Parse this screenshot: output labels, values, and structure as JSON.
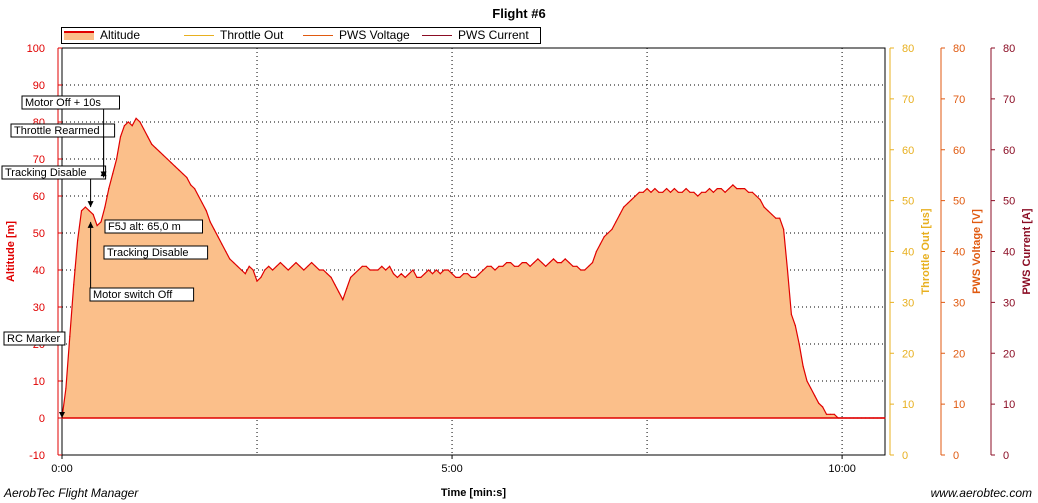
{
  "footer": {
    "left": "AerobTec Flight Manager",
    "right": "www.aerobtec.com"
  },
  "colors": {
    "altitude_line": "#e00000",
    "altitude_fill": "#fbbf8a",
    "throttle": "#e8b020",
    "voltage": "#e05a10",
    "current": "#8b0d24",
    "grid": "#000000"
  },
  "chart_data": {
    "type": "area",
    "title": "Flight #6",
    "xlabel": "Time [min:s]",
    "x_unit": "seconds",
    "xlim": [
      0,
      633
    ],
    "x_ticks": [
      {
        "v": 0,
        "label": "0:00"
      },
      {
        "v": 300,
        "label": "5:00"
      },
      {
        "v": 600,
        "label": "10:00"
      }
    ],
    "grid": true,
    "legend_position": "top-left",
    "legend": [
      "Altitude",
      "Throttle Out",
      "PWS Voltage",
      "PWS Current"
    ],
    "axes": [
      {
        "id": "altitude",
        "label": "Altitude [m]",
        "color": "#e00000",
        "side": "left",
        "range": [
          -10,
          100
        ],
        "ticks": [
          -10,
          0,
          10,
          20,
          30,
          40,
          50,
          60,
          70,
          80,
          90,
          100
        ]
      },
      {
        "id": "throttle",
        "label": "Throttle Out [us]",
        "color": "#e8b020",
        "side": "right",
        "range": [
          0,
          80
        ],
        "ticks": [
          0,
          10,
          20,
          30,
          40,
          50,
          60,
          70,
          80
        ]
      },
      {
        "id": "voltage",
        "label": "PWS Voltage [V]",
        "color": "#e05a10",
        "side": "right",
        "range": [
          0,
          80
        ],
        "ticks": [
          0,
          10,
          20,
          30,
          40,
          50,
          60,
          70,
          80
        ]
      },
      {
        "id": "current",
        "label": "PWS Current [A]",
        "color": "#8b0d24",
        "side": "right",
        "range": [
          0,
          80
        ],
        "ticks": [
          0,
          10,
          20,
          30,
          40,
          50,
          60,
          70,
          80
        ]
      }
    ],
    "series": [
      {
        "name": "Altitude",
        "axis": "altitude",
        "points": [
          [
            0,
            0
          ],
          [
            3,
            8
          ],
          [
            6,
            22
          ],
          [
            9,
            36
          ],
          [
            12,
            48
          ],
          [
            15,
            56
          ],
          [
            18,
            57
          ],
          [
            21,
            56
          ],
          [
            24,
            55
          ],
          [
            27,
            52
          ],
          [
            30,
            53
          ],
          [
            33,
            57
          ],
          [
            36,
            62
          ],
          [
            39,
            66
          ],
          [
            42,
            70
          ],
          [
            45,
            76
          ],
          [
            48,
            79
          ],
          [
            51,
            80
          ],
          [
            54,
            79
          ],
          [
            57,
            81
          ],
          [
            60,
            80
          ],
          [
            63,
            78
          ],
          [
            66,
            76
          ],
          [
            69,
            74
          ],
          [
            72,
            73
          ],
          [
            75,
            72
          ],
          [
            78,
            71
          ],
          [
            81,
            70
          ],
          [
            84,
            69
          ],
          [
            87,
            68
          ],
          [
            90,
            67
          ],
          [
            93,
            66
          ],
          [
            96,
            65
          ],
          [
            99,
            63
          ],
          [
            102,
            62
          ],
          [
            105,
            60
          ],
          [
            108,
            58
          ],
          [
            111,
            56
          ],
          [
            114,
            53
          ],
          [
            117,
            51
          ],
          [
            120,
            49
          ],
          [
            123,
            47
          ],
          [
            126,
            45
          ],
          [
            129,
            43
          ],
          [
            132,
            42
          ],
          [
            135,
            41
          ],
          [
            138,
            40
          ],
          [
            141,
            39
          ],
          [
            144,
            41
          ],
          [
            147,
            40
          ],
          [
            150,
            37
          ],
          [
            153,
            38
          ],
          [
            156,
            40
          ],
          [
            159,
            41
          ],
          [
            162,
            40
          ],
          [
            165,
            41
          ],
          [
            168,
            42
          ],
          [
            171,
            41
          ],
          [
            174,
            40
          ],
          [
            177,
            41
          ],
          [
            180,
            42
          ],
          [
            183,
            41
          ],
          [
            186,
            40
          ],
          [
            189,
            41
          ],
          [
            192,
            42
          ],
          [
            195,
            41
          ],
          [
            198,
            40
          ],
          [
            201,
            40
          ],
          [
            204,
            39
          ],
          [
            207,
            38
          ],
          [
            210,
            36
          ],
          [
            213,
            34
          ],
          [
            216,
            32
          ],
          [
            219,
            35
          ],
          [
            222,
            38
          ],
          [
            225,
            39
          ],
          [
            228,
            40
          ],
          [
            231,
            41
          ],
          [
            234,
            41
          ],
          [
            237,
            40
          ],
          [
            240,
            40
          ],
          [
            243,
            40
          ],
          [
            246,
            41
          ],
          [
            249,
            40
          ],
          [
            252,
            41
          ],
          [
            255,
            39
          ],
          [
            258,
            38
          ],
          [
            261,
            39
          ],
          [
            264,
            38
          ],
          [
            267,
            39
          ],
          [
            270,
            40
          ],
          [
            273,
            38
          ],
          [
            276,
            38
          ],
          [
            279,
            39
          ],
          [
            282,
            40
          ],
          [
            285,
            39
          ],
          [
            288,
            40
          ],
          [
            291,
            39
          ],
          [
            294,
            40
          ],
          [
            297,
            40
          ],
          [
            300,
            39
          ],
          [
            303,
            38
          ],
          [
            306,
            38
          ],
          [
            309,
            39
          ],
          [
            312,
            39
          ],
          [
            315,
            38
          ],
          [
            318,
            38
          ],
          [
            321,
            39
          ],
          [
            324,
            40
          ],
          [
            327,
            41
          ],
          [
            330,
            41
          ],
          [
            333,
            40
          ],
          [
            336,
            41
          ],
          [
            339,
            41
          ],
          [
            342,
            42
          ],
          [
            345,
            42
          ],
          [
            348,
            41
          ],
          [
            351,
            41
          ],
          [
            354,
            42
          ],
          [
            357,
            42
          ],
          [
            360,
            41
          ],
          [
            363,
            42
          ],
          [
            366,
            43
          ],
          [
            369,
            42
          ],
          [
            372,
            41
          ],
          [
            375,
            42
          ],
          [
            378,
            43
          ],
          [
            381,
            42
          ],
          [
            384,
            42
          ],
          [
            387,
            43
          ],
          [
            390,
            42
          ],
          [
            393,
            41
          ],
          [
            396,
            41
          ],
          [
            399,
            40
          ],
          [
            402,
            40
          ],
          [
            405,
            41
          ],
          [
            408,
            42
          ],
          [
            411,
            45
          ],
          [
            414,
            47
          ],
          [
            417,
            49
          ],
          [
            420,
            50
          ],
          [
            423,
            51
          ],
          [
            426,
            53
          ],
          [
            429,
            55
          ],
          [
            432,
            57
          ],
          [
            435,
            58
          ],
          [
            438,
            59
          ],
          [
            441,
            60
          ],
          [
            444,
            61
          ],
          [
            447,
            61
          ],
          [
            450,
            62
          ],
          [
            453,
            61
          ],
          [
            456,
            62
          ],
          [
            459,
            61
          ],
          [
            462,
            61
          ],
          [
            465,
            62
          ],
          [
            468,
            61
          ],
          [
            471,
            62
          ],
          [
            474,
            61
          ],
          [
            477,
            61
          ],
          [
            480,
            62
          ],
          [
            483,
            61
          ],
          [
            486,
            61
          ],
          [
            489,
            60
          ],
          [
            492,
            61
          ],
          [
            495,
            61
          ],
          [
            498,
            62
          ],
          [
            501,
            61
          ],
          [
            504,
            62
          ],
          [
            507,
            62
          ],
          [
            510,
            61
          ],
          [
            513,
            62
          ],
          [
            516,
            63
          ],
          [
            519,
            62
          ],
          [
            522,
            62
          ],
          [
            525,
            62
          ],
          [
            528,
            61
          ],
          [
            531,
            61
          ],
          [
            534,
            60
          ],
          [
            537,
            59
          ],
          [
            540,
            57
          ],
          [
            543,
            56
          ],
          [
            546,
            55
          ],
          [
            549,
            54
          ],
          [
            552,
            54
          ],
          [
            555,
            51
          ],
          [
            558,
            40
          ],
          [
            561,
            28
          ],
          [
            564,
            25
          ],
          [
            567,
            20
          ],
          [
            570,
            14
          ],
          [
            573,
            10
          ],
          [
            576,
            8
          ],
          [
            579,
            6
          ],
          [
            582,
            4
          ],
          [
            585,
            3
          ],
          [
            588,
            1
          ],
          [
            591,
            1
          ],
          [
            594,
            1
          ],
          [
            597,
            0
          ],
          [
            600,
            0
          ],
          [
            603,
            0
          ],
          [
            606,
            0
          ],
          [
            609,
            0
          ],
          [
            612,
            0
          ],
          [
            615,
            0
          ],
          [
            618,
            0
          ],
          [
            621,
            0
          ],
          [
            624,
            0
          ],
          [
            627,
            0
          ],
          [
            630,
            0
          ],
          [
            633,
            0
          ]
        ]
      },
      {
        "name": "Throttle Out",
        "axis": "throttle",
        "points": []
      },
      {
        "name": "PWS Voltage",
        "axis": "voltage",
        "points": []
      },
      {
        "name": "PWS Current",
        "axis": "current",
        "points": []
      }
    ],
    "flat_line": {
      "axis": "altitude",
      "value": 0,
      "from": 0,
      "to": 633
    },
    "annotations": [
      {
        "label": "RC Marker",
        "x": 0,
        "y": 0
      },
      {
        "label": "Tracking Disable",
        "x": 22,
        "y": 57
      },
      {
        "label": "Motor switch Off",
        "x": 22,
        "y": 53
      },
      {
        "label": "F5J alt: 65,0 m",
        "x": 32,
        "y": 65
      },
      {
        "label": "Tracking Disable",
        "x": 32,
        "y": 61
      },
      {
        "label": "Throttle Rearmed",
        "x": 32,
        "y": 67
      },
      {
        "label": "Motor Off + 10s",
        "x": 32,
        "y": 65
      }
    ]
  }
}
